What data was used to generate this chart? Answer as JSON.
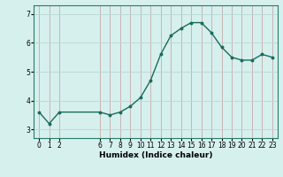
{
  "x": [
    0,
    1,
    2,
    6,
    7,
    8,
    9,
    10,
    11,
    12,
    13,
    14,
    15,
    16,
    17,
    18,
    19,
    20,
    21,
    22,
    23
  ],
  "y": [
    3.6,
    3.2,
    3.6,
    3.6,
    3.5,
    3.6,
    3.8,
    4.1,
    4.7,
    5.6,
    6.25,
    6.5,
    6.7,
    6.7,
    6.35,
    5.85,
    5.5,
    5.4,
    5.4,
    5.6,
    5.5
  ],
  "line_color": "#1a6b5a",
  "marker": "o",
  "marker_size": 1.8,
  "bg_color": "#d6f0ee",
  "grid_color_h": "#b8d8d4",
  "grid_color_v": "#c8aaaa",
  "xlabel": "Humidex (Indice chaleur)",
  "ylim": [
    2.7,
    7.3
  ],
  "xlim": [
    -0.5,
    23.5
  ],
  "yticks": [
    3,
    4,
    5,
    6,
    7
  ],
  "xticks": [
    0,
    1,
    2,
    6,
    7,
    8,
    9,
    10,
    11,
    12,
    13,
    14,
    15,
    16,
    17,
    18,
    19,
    20,
    21,
    22,
    23
  ],
  "xlabel_fontsize": 6.5,
  "tick_fontsize": 5.5,
  "line_width": 1.0
}
